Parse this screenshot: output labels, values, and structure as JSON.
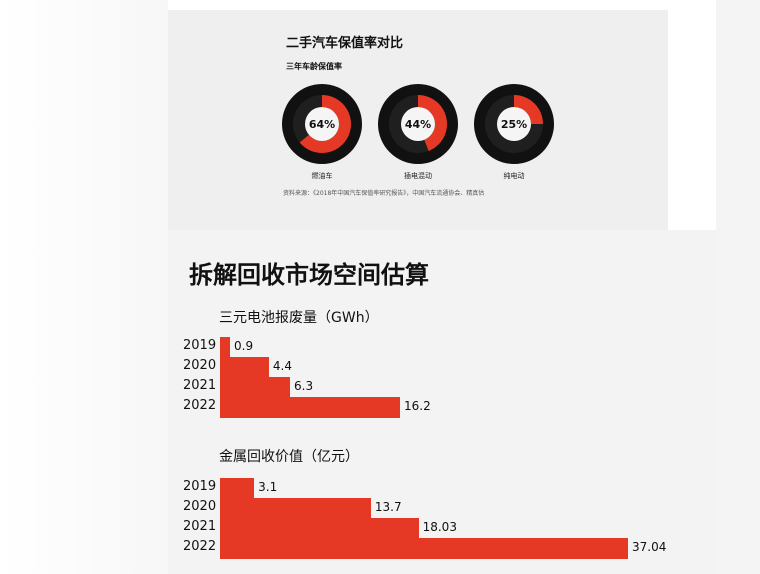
{
  "retention": {
    "title": "二手汽车保值率对比",
    "subtitle": "三年车龄保值率",
    "source": "资料来源：《2018年中国汽车保值率研究报告》，中国汽车流通协会、精真估",
    "items": [
      {
        "label": "燃油车",
        "value": 64,
        "value_text": "64%"
      },
      {
        "label": "插电混动",
        "value": 44,
        "value_text": "44%"
      },
      {
        "label": "纯电动",
        "value": 25,
        "value_text": "25%"
      }
    ]
  },
  "section_title": "拆解回收市场空间估算",
  "chart_data": [
    {
      "type": "bar",
      "title": "三元电池报废量（GWh）",
      "categories": [
        "2019",
        "2020",
        "2021",
        "2022"
      ],
      "values": [
        0.9,
        4.4,
        6.3,
        16.2
      ],
      "value_labels": [
        "0.9",
        "4.4",
        "6.3",
        "16.2"
      ],
      "orientation": "horizontal",
      "color": "#e53925"
    },
    {
      "type": "bar",
      "title": "金属回收价值（亿元）",
      "categories": [
        "2019",
        "2020",
        "2021",
        "2022"
      ],
      "values": [
        3.1,
        13.7,
        18.03,
        37.04
      ],
      "value_labels": [
        "3.1",
        "13.7",
        "18.03",
        "37.04"
      ],
      "orientation": "horizontal",
      "color": "#e53925"
    }
  ]
}
